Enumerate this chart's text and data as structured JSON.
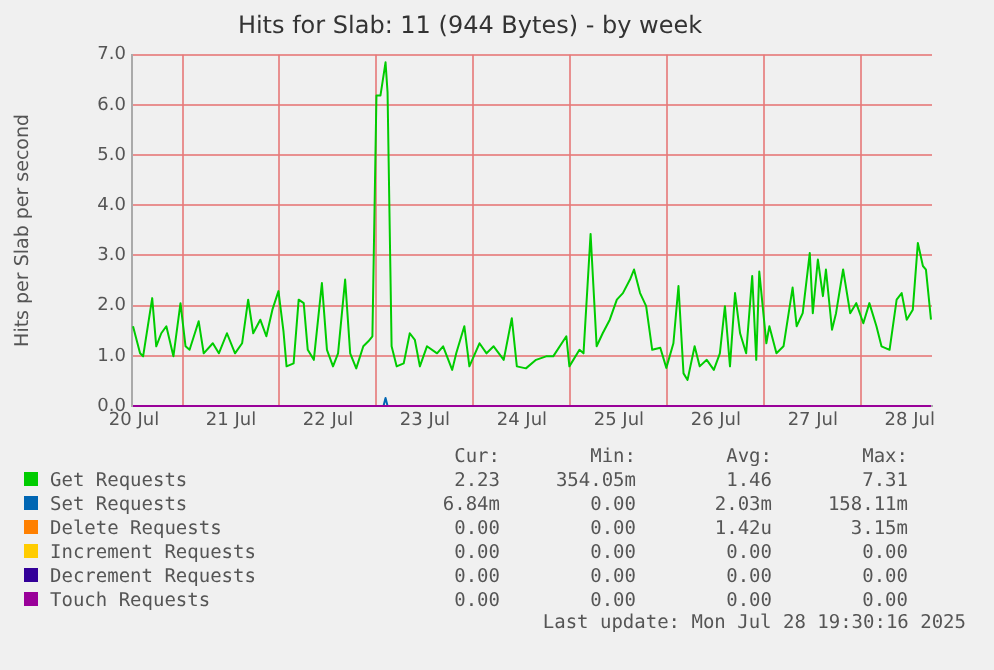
{
  "chart_data": {
    "type": "line",
    "title": "Hits for Slab: 11 (944 Bytes) - by week",
    "ylabel": "Hits per Slab per second",
    "xlim": [
      "2025-07-20T11:30",
      "2025-07-28T17:30"
    ],
    "xticks": [
      {
        "value": "2025-07-20T12:00",
        "label": "20 Jul"
      },
      {
        "value": "2025-07-21T00:00",
        "label": null
      },
      {
        "value": "2025-07-21T12:00",
        "label": "21 Jul"
      },
      {
        "value": "2025-07-22T00:00",
        "label": null
      },
      {
        "value": "2025-07-22T12:00",
        "label": "22 Jul"
      },
      {
        "value": "2025-07-23T00:00",
        "label": null
      },
      {
        "value": "2025-07-23T12:00",
        "label": "23 Jul"
      },
      {
        "value": "2025-07-24T00:00",
        "label": null
      },
      {
        "value": "2025-07-24T12:00",
        "label": "24 Jul"
      },
      {
        "value": "2025-07-25T00:00",
        "label": null
      },
      {
        "value": "2025-07-25T12:00",
        "label": "25 Jul"
      },
      {
        "value": "2025-07-26T00:00",
        "label": null
      },
      {
        "value": "2025-07-26T12:00",
        "label": "26 Jul"
      },
      {
        "value": "2025-07-27T00:00",
        "label": null
      },
      {
        "value": "2025-07-27T12:00",
        "label": "27 Jul"
      },
      {
        "value": "2025-07-28T00:00",
        "label": null
      },
      {
        "value": "2025-07-28T12:00",
        "label": "28 Jul"
      }
    ],
    "ylim": [
      0,
      7
    ],
    "yticks": [
      {
        "value": 0,
        "label": "0.0"
      },
      {
        "value": 1,
        "label": "1.0"
      },
      {
        "value": 2,
        "label": "2.0"
      },
      {
        "value": 3,
        "label": "3.0"
      },
      {
        "value": 4,
        "label": "4.0"
      },
      {
        "value": 5,
        "label": "5.0"
      },
      {
        "value": 6,
        "label": "6.0"
      },
      {
        "value": 7,
        "label": "7.0"
      }
    ],
    "grid": true,
    "legend": "bottom",
    "series": [
      {
        "name": "Get Requests",
        "color": "#00cc00",
        "x": [
          "2025-07-20T11:45",
          "2025-07-20T13:30",
          "2025-07-20T14:15",
          "2025-07-20T16:30",
          "2025-07-20T17:30",
          "2025-07-20T18:45",
          "2025-07-20T20:00",
          "2025-07-20T21:45",
          "2025-07-20T23:30",
          "2025-07-21T00:45",
          "2025-07-21T01:45",
          "2025-07-21T04:00",
          "2025-07-21T05:15",
          "2025-07-21T07:30",
          "2025-07-21T09:00",
          "2025-07-21T11:00",
          "2025-07-21T13:00",
          "2025-07-21T14:45",
          "2025-07-21T16:15",
          "2025-07-21T17:30",
          "2025-07-21T19:15",
          "2025-07-21T20:45",
          "2025-07-21T22:15",
          "2025-07-21T23:45",
          "2025-07-22T01:00",
          "2025-07-22T01:45",
          "2025-07-22T03:30",
          "2025-07-22T04:45",
          "2025-07-22T06:00",
          "2025-07-22T07:00",
          "2025-07-22T08:30",
          "2025-07-22T10:30",
          "2025-07-22T11:45",
          "2025-07-22T13:15",
          "2025-07-22T14:30",
          "2025-07-22T16:15",
          "2025-07-22T17:30",
          "2025-07-22T19:00",
          "2025-07-22T20:45",
          "2025-07-22T22:00",
          "2025-07-22T23:00",
          "2025-07-23T00:00",
          "2025-07-23T01:00",
          "2025-07-23T02:15",
          "2025-07-23T02:45",
          "2025-07-23T03:45",
          "2025-07-23T05:00",
          "2025-07-23T06:45",
          "2025-07-23T08:15",
          "2025-07-23T09:30",
          "2025-07-23T10:45",
          "2025-07-23T12:30",
          "2025-07-23T15:00",
          "2025-07-23T16:30",
          "2025-07-23T18:45",
          "2025-07-23T19:45",
          "2025-07-23T21:45",
          "2025-07-23T23:00",
          "2025-07-24T01:30",
          "2025-07-24T03:15",
          "2025-07-24T05:00",
          "2025-07-24T07:30",
          "2025-07-24T09:30",
          "2025-07-24T10:45",
          "2025-07-24T13:00",
          "2025-07-24T15:30",
          "2025-07-24T18:00",
          "2025-07-24T19:45",
          "2025-07-24T23:00",
          "2025-07-24T23:45",
          "2025-07-25T02:15",
          "2025-07-25T03:15",
          "2025-07-25T05:00",
          "2025-07-25T06:30",
          "2025-07-25T08:00",
          "2025-07-25T09:45",
          "2025-07-25T11:30",
          "2025-07-25T13:00",
          "2025-07-25T14:45",
          "2025-07-25T15:45",
          "2025-07-25T17:15",
          "2025-07-25T18:45",
          "2025-07-25T20:15",
          "2025-07-25T22:15",
          "2025-07-25T23:45",
          "2025-07-26T01:30",
          "2025-07-26T02:45",
          "2025-07-26T04:00",
          "2025-07-26T05:00",
          "2025-07-26T06:45",
          "2025-07-26T08:00",
          "2025-07-26T09:45",
          "2025-07-26T11:30",
          "2025-07-26T13:00",
          "2025-07-26T14:15",
          "2025-07-26T15:30",
          "2025-07-26T16:45",
          "2025-07-26T18:00",
          "2025-07-26T19:30",
          "2025-07-26T21:00",
          "2025-07-26T22:00",
          "2025-07-26T22:45",
          "2025-07-27T00:30",
          "2025-07-27T01:15",
          "2025-07-27T03:00",
          "2025-07-27T04:45",
          "2025-07-27T07:00",
          "2025-07-27T08:00",
          "2025-07-27T09:30",
          "2025-07-27T11:15",
          "2025-07-27T12:00",
          "2025-07-27T13:15",
          "2025-07-27T14:30",
          "2025-07-27T15:15",
          "2025-07-27T16:45",
          "2025-07-27T17:45",
          "2025-07-27T19:30",
          "2025-07-27T21:15",
          "2025-07-27T22:45",
          "2025-07-28T00:30",
          "2025-07-28T02:00",
          "2025-07-28T03:45",
          "2025-07-28T05:00",
          "2025-07-28T07:00",
          "2025-07-28T08:45",
          "2025-07-28T10:00",
          "2025-07-28T11:15",
          "2025-07-28T12:45",
          "2025-07-28T14:00",
          "2025-07-28T15:15",
          "2025-07-28T16:00",
          "2025-07-28T17:15"
        ],
        "values": [
          1.59,
          1.05,
          0.99,
          2.15,
          1.19,
          1.45,
          1.59,
          0.99,
          2.05,
          1.19,
          1.12,
          1.69,
          1.05,
          1.25,
          1.05,
          1.45,
          1.05,
          1.25,
          2.12,
          1.45,
          1.72,
          1.39,
          1.92,
          2.29,
          1.48,
          0.79,
          0.85,
          2.12,
          2.05,
          1.12,
          0.92,
          2.45,
          1.12,
          0.79,
          1.05,
          2.52,
          1.05,
          0.75,
          1.19,
          1.29,
          1.39,
          6.19,
          6.19,
          6.85,
          6.25,
          1.19,
          0.79,
          0.85,
          1.45,
          1.32,
          0.79,
          1.19,
          1.05,
          1.19,
          0.72,
          1.05,
          1.59,
          0.79,
          1.25,
          1.05,
          1.19,
          0.92,
          1.75,
          0.79,
          0.75,
          0.92,
          0.99,
          0.99,
          1.39,
          0.79,
          1.12,
          1.05,
          3.43,
          1.19,
          1.45,
          1.72,
          2.12,
          2.25,
          2.52,
          2.72,
          2.25,
          1.99,
          1.12,
          1.16,
          0.76,
          1.25,
          2.39,
          0.65,
          0.52,
          1.19,
          0.79,
          0.92,
          0.72,
          1.05,
          1.99,
          0.79,
          2.25,
          1.45,
          1.05,
          2.59,
          0.92,
          2.68,
          1.25,
          1.59,
          1.05,
          1.19,
          2.36,
          1.59,
          1.85,
          3.05,
          1.85,
          2.92,
          2.19,
          2.72,
          1.52,
          1.85,
          2.72,
          1.85,
          2.05,
          1.65,
          2.05,
          1.59,
          1.19,
          1.12,
          2.12,
          2.25,
          1.72,
          1.92,
          3.25,
          2.79,
          2.72,
          1.72
        ]
      },
      {
        "name": "Set Requests",
        "color": "#0066b3",
        "x": [
          "2025-07-23T01:45",
          "2025-07-23T02:15",
          "2025-07-23T02:45"
        ],
        "values": [
          0,
          0.16,
          0
        ]
      },
      {
        "name": "Delete Requests",
        "color": "#ff8000"
      },
      {
        "name": "Increment Requests",
        "color": "#ffcc00"
      },
      {
        "name": "Decrement Requests",
        "color": "#330099"
      },
      {
        "name": "Touch Requests",
        "color": "#990099",
        "x": [
          "2025-07-20T11:45",
          "2025-07-28T17:15"
        ],
        "values": [
          0,
          0
        ]
      }
    ],
    "annotations": [
      "Cur:",
      "Min:",
      "Avg:",
      "Max:",
      "2.23",
      "354.05m",
      "1.46",
      "7.31",
      "6.84m",
      "0.00",
      "2.03m",
      "158.11m",
      "0.00",
      "0.00",
      "1.42u",
      "3.15m",
      "0.00",
      "0.00",
      "0.00",
      "0.00",
      "0.00",
      "0.00",
      "0.00",
      "0.00",
      "0.00",
      "0.00",
      "0.00",
      "0.00",
      "Last update: Mon Jul 28 19:30:16 2025"
    ]
  }
}
